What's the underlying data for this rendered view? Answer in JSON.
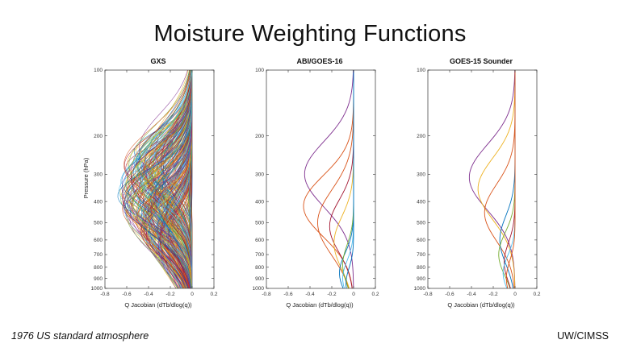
{
  "slide": {
    "title": "Moisture Weighting Functions",
    "footnote": "1976 US standard atmosphere",
    "credit": "UW/CIMSS"
  },
  "chart_data": [
    {
      "type": "line",
      "title": "GXS",
      "xlabel": "Q Jacobian (dTb/dlog(q))",
      "ylabel": "Pressure (hPa)",
      "xlim": [
        -0.8,
        0.2
      ],
      "xticks": [
        -0.8,
        -0.6,
        -0.4,
        -0.2,
        0,
        0.2
      ],
      "ylim_hPa": [
        100,
        1000
      ],
      "yticks_hPa": [
        100,
        200,
        300,
        400,
        500,
        600,
        700,
        800,
        900,
        1000
      ],
      "yscale": "log",
      "grid": false,
      "legend": "none",
      "ensemble": {
        "count": 300,
        "seed": 7,
        "peak_hPa_range": [
          230,
          660
        ],
        "amplitude_range": [
          0.02,
          0.7
        ],
        "logwidth_range": [
          0.09,
          0.18
        ],
        "near_zero_fraction": 0.22,
        "palette": [
          "#0072BD",
          "#D95319",
          "#EDB120",
          "#7E2F8E",
          "#77AC30",
          "#4DBEEE",
          "#A2142F"
        ]
      },
      "series": []
    },
    {
      "type": "line",
      "title": "ABI/GOES-16",
      "xlabel": "Q Jacobian (dTb/dlog(q))",
      "ylabel": "",
      "xlim": [
        -0.8,
        0.2
      ],
      "xticks": [
        -0.8,
        -0.6,
        -0.4,
        -0.2,
        0,
        0.2
      ],
      "ylim_hPa": [
        100,
        1000
      ],
      "yticks_hPa": [
        100,
        200,
        300,
        400,
        500,
        600,
        700,
        800,
        900,
        1000
      ],
      "yscale": "log",
      "grid": false,
      "legend": "none",
      "series": [
        {
          "color": "#7E2F8E",
          "peak_hPa": 300,
          "amplitude": 0.45,
          "logwidth": 0.15
        },
        {
          "color": "#D95319",
          "peak_hPa": 420,
          "amplitude": 0.46,
          "logwidth": 0.14
        },
        {
          "color": "#D95319",
          "peak_hPa": 500,
          "amplitude": 0.33,
          "logwidth": 0.15
        },
        {
          "color": "#A2142F",
          "peak_hPa": 520,
          "amplitude": 0.22,
          "logwidth": 0.12
        },
        {
          "color": "#EDB120",
          "peak_hPa": 620,
          "amplitude": 0.18,
          "logwidth": 0.12
        },
        {
          "color": "#0072BD",
          "peak_hPa": 850,
          "amplitude": 0.13,
          "logwidth": 0.09
        },
        {
          "color": "#77AC30",
          "peak_hPa": 780,
          "amplitude": 0.1,
          "logwidth": 0.09
        },
        {
          "color": "#4DBEEE",
          "peak_hPa": 900,
          "amplitude": 0.1,
          "logwidth": 0.08
        },
        {
          "color": "#0072BD",
          "peak_hPa": 950,
          "amplitude": 0.07,
          "logwidth": 0.07
        }
      ]
    },
    {
      "type": "line",
      "title": "GOES-15 Sounder",
      "xlabel": "Q Jacobian (dTb/dlog(q))",
      "ylabel": "",
      "xlim": [
        -0.8,
        0.2
      ],
      "xticks": [
        -0.8,
        -0.6,
        -0.4,
        -0.2,
        0,
        0.2
      ],
      "ylim_hPa": [
        100,
        1000
      ],
      "yticks_hPa": [
        100,
        200,
        300,
        400,
        500,
        600,
        700,
        800,
        900,
        1000
      ],
      "yscale": "log",
      "grid": false,
      "legend": "none",
      "series": [
        {
          "color": "#7E2F8E",
          "peak_hPa": 310,
          "amplitude": 0.42,
          "logwidth": 0.15
        },
        {
          "color": "#EDB120",
          "peak_hPa": 350,
          "amplitude": 0.34,
          "logwidth": 0.14
        },
        {
          "color": "#D95319",
          "peak_hPa": 450,
          "amplitude": 0.28,
          "logwidth": 0.13
        },
        {
          "color": "#0072BD",
          "peak_hPa": 600,
          "amplitude": 0.14,
          "logwidth": 0.11
        },
        {
          "color": "#77AC30",
          "peak_hPa": 700,
          "amplitude": 0.15,
          "logwidth": 0.1
        },
        {
          "color": "#A2142F",
          "peak_hPa": 760,
          "amplitude": 0.1,
          "logwidth": 0.09
        },
        {
          "color": "#4DBEEE",
          "peak_hPa": 850,
          "amplitude": 0.11,
          "logwidth": 0.08
        },
        {
          "color": "#D95319",
          "peak_hPa": 900,
          "amplitude": 0.08,
          "logwidth": 0.08
        }
      ]
    }
  ]
}
